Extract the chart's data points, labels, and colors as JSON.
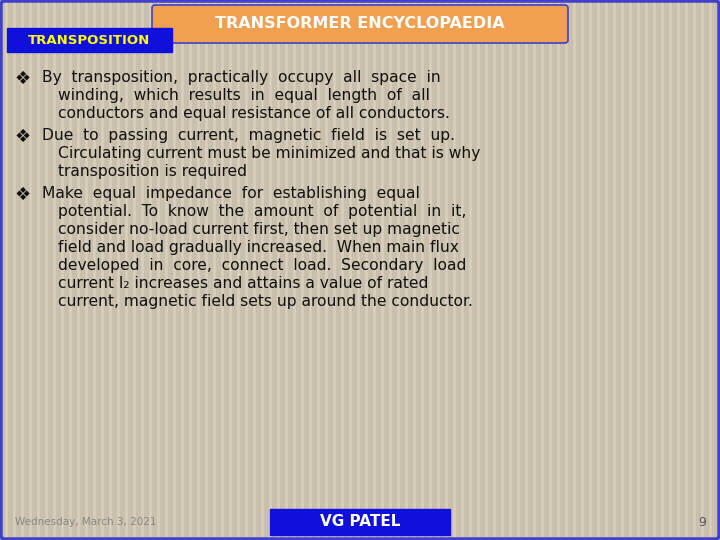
{
  "title": "TRANSFORMER ENCYCLOPAEDIA",
  "title_bg": "#F0A050",
  "title_color": "#FFFFFF",
  "subtitle": "TRANSPOSITION",
  "subtitle_bg": "#1010DD",
  "subtitle_color": "#FFFF00",
  "bg_color": "#D8D0BC",
  "stripe_color": "#C8C0AC",
  "border_color": "#4040CC",
  "footer_date": "Wednesday, March 3, 2021",
  "footer_name": "VG PATEL",
  "footer_page": "9",
  "footer_name_bg": "#1010DD",
  "footer_name_color": "#FFFFFF",
  "footer_date_color": "#888888",
  "bullet": "❖",
  "bullet_color": "#111111",
  "text_color": "#111111",
  "line1_b1": "By  transposition,  practically  occupy  all  space  in",
  "line2_b1": "winding,  which  results  in  equal  length  of  all",
  "line3_b1": "conductors and equal resistance of all conductors.",
  "line1_b2": "Due  to  passing  current,  magnetic  field  is  set  up.",
  "line2_b2": "Circulating current must be minimized and that is why",
  "line3_b2": "transposition is required",
  "line1_b3": "Make  equal  impedance  for  establishing  equal",
  "line2_b3": "potential.  To  know  the  amount  of  potential  in  it,",
  "line3_b3": "consider no-load current first, then set up magnetic",
  "line4_b3": "field and load gradually increased.  When main flux",
  "line5_b3": "developed  in  core,  connect  load.  Secondary  load",
  "line6_b3": "current I₂ increases and attains a value of rated",
  "line7_b3": "current, magnetic field sets up around the conductor."
}
